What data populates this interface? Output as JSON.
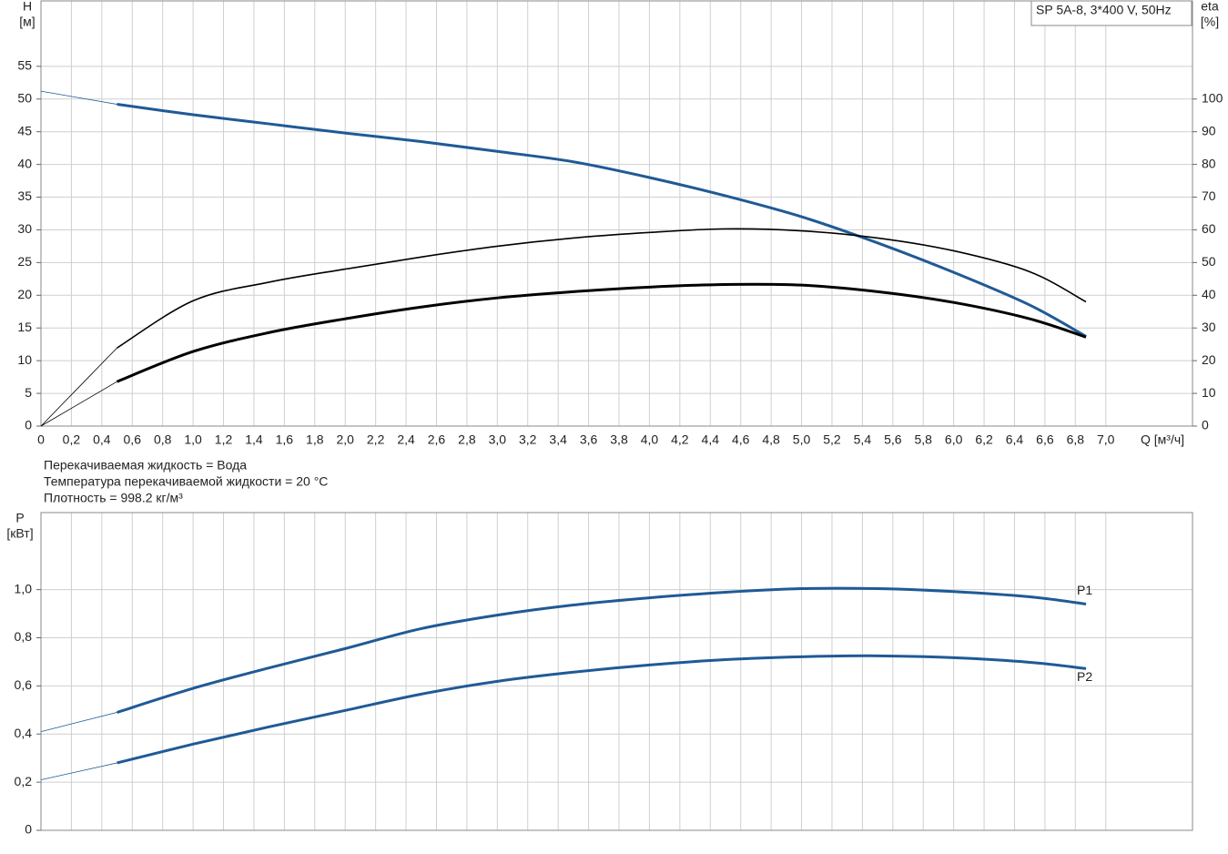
{
  "chart_data": [
    {
      "type": "line",
      "title": "SP 5A-8, 3*400 V, 50Hz",
      "y_label": "H",
      "y_unit": "[м]",
      "y2_label": "eta",
      "y2_unit": "[%]",
      "x_label": "Q [м³/ч]",
      "xlim": [
        0,
        7.57
      ],
      "ylim": [
        0,
        65
      ],
      "y2lim": [
        0,
        130
      ],
      "grid": true,
      "xticks": [
        0,
        {
          "value": 0.2,
          "label": "0,2"
        },
        {
          "value": 0.4,
          "label": "0,4"
        },
        {
          "value": 0.6,
          "label": "0,6"
        },
        {
          "value": 0.8,
          "label": "0,8"
        },
        {
          "value": 1.0,
          "label": "1,0"
        },
        {
          "value": 1.2,
          "label": "1,2"
        },
        {
          "value": 1.4,
          "label": "1,4"
        },
        {
          "value": 1.6,
          "label": "1,6"
        },
        {
          "value": 1.8,
          "label": "1,8"
        },
        {
          "value": 2.0,
          "label": "2,0"
        },
        {
          "value": 2.2,
          "label": "2,2"
        },
        {
          "value": 2.4,
          "label": "2,4"
        },
        {
          "value": 2.6,
          "label": "2,6"
        },
        {
          "value": 2.8,
          "label": "2,8"
        },
        {
          "value": 3.0,
          "label": "3,0"
        },
        {
          "value": 3.2,
          "label": "3,2"
        },
        {
          "value": 3.4,
          "label": "3,4"
        },
        {
          "value": 3.6,
          "label": "3,6"
        },
        {
          "value": 3.8,
          "label": "3,8"
        },
        {
          "value": 4.0,
          "label": "4,0"
        },
        {
          "value": 4.2,
          "label": "4,2"
        },
        {
          "value": 4.4,
          "label": "4,4"
        },
        {
          "value": 4.6,
          "label": "4,6"
        },
        {
          "value": 4.8,
          "label": "4,8"
        },
        {
          "value": 5.0,
          "label": "5,0"
        },
        {
          "value": 5.2,
          "label": "5,2"
        },
        {
          "value": 5.4,
          "label": "5,4"
        },
        {
          "value": 5.6,
          "label": "5,6"
        },
        {
          "value": 5.8,
          "label": "5,8"
        },
        {
          "value": 6.0,
          "label": "6,0"
        },
        {
          "value": 6.2,
          "label": "6,2"
        },
        {
          "value": 6.4,
          "label": "6,4"
        },
        {
          "value": 6.6,
          "label": "6,6"
        },
        {
          "value": 6.8,
          "label": "6,8"
        },
        {
          "value": 7.0,
          "label": "7,0"
        }
      ],
      "yticks": [
        0,
        5,
        10,
        15,
        20,
        25,
        30,
        35,
        40,
        45,
        50,
        55
      ],
      "y2ticks": [
        0,
        10,
        20,
        30,
        40,
        50,
        60,
        70,
        80,
        90,
        100
      ],
      "x": [
        0,
        0.5,
        1.0,
        1.5,
        2.0,
        2.5,
        3.0,
        3.5,
        4.0,
        4.5,
        5.0,
        5.5,
        6.0,
        6.5,
        6.87
      ],
      "series": [
        {
          "color": "#1f5a96",
          "values": [
            51.2,
            49.2,
            47.6,
            46.2,
            44.8,
            43.5,
            42.0,
            40.4,
            38.0,
            35.2,
            32.0,
            28.0,
            23.5,
            18.5,
            13.7
          ]
        },
        {
          "color": "#000000",
          "axis": "y2",
          "values": [
            0,
            23.9,
            38.3,
            44,
            48,
            51.7,
            55,
            57.5,
            59.2,
            60.3,
            59.7,
            57.5,
            53.6,
            47.2,
            38
          ]
        },
        {
          "color": "#000000",
          "axis": "y2",
          "values": [
            0,
            13.6,
            22.8,
            28.6,
            32.8,
            36.4,
            39.2,
            41.1,
            42.5,
            43.3,
            43.1,
            41.1,
            37.8,
            32.8,
            27.2
          ]
        }
      ]
    },
    {
      "type": "line",
      "y_label": "P",
      "y_unit": "[кВт]",
      "xlim": [
        0,
        7.57
      ],
      "ylim": [
        0,
        1.32
      ],
      "grid": true,
      "yticks": [
        0,
        {
          "value": 0.2,
          "label": "0,2"
        },
        {
          "value": 0.4,
          "label": "0,4"
        },
        {
          "value": 0.6,
          "label": "0,6"
        },
        {
          "value": 0.8,
          "label": "0,8"
        },
        {
          "value": 1.0,
          "label": "1,0"
        }
      ],
      "x": [
        0,
        0.5,
        1.0,
        1.5,
        2.0,
        2.5,
        3.0,
        3.5,
        4.0,
        4.5,
        5.0,
        5.5,
        6.0,
        6.5,
        6.87
      ],
      "series": [
        {
          "name": "P1",
          "color": "#1f5a96",
          "values": [
            0.41,
            0.49,
            0.59,
            0.675,
            0.755,
            0.838,
            0.894,
            0.936,
            0.966,
            0.989,
            1.004,
            1.004,
            0.992,
            0.97,
            0.94
          ]
        },
        {
          "name": "P2",
          "color": "#1f5a96",
          "values": [
            0.21,
            0.28,
            0.358,
            0.43,
            0.498,
            0.566,
            0.619,
            0.657,
            0.687,
            0.709,
            0.721,
            0.725,
            0.717,
            0.698,
            0.672
          ]
        }
      ]
    }
  ],
  "notes": [
    "Перекачиваемая жидкость = Вода",
    "Температура перекачиваемой жидкости = 20 °C",
    "Плотность = 998.2 кг/м³"
  ]
}
